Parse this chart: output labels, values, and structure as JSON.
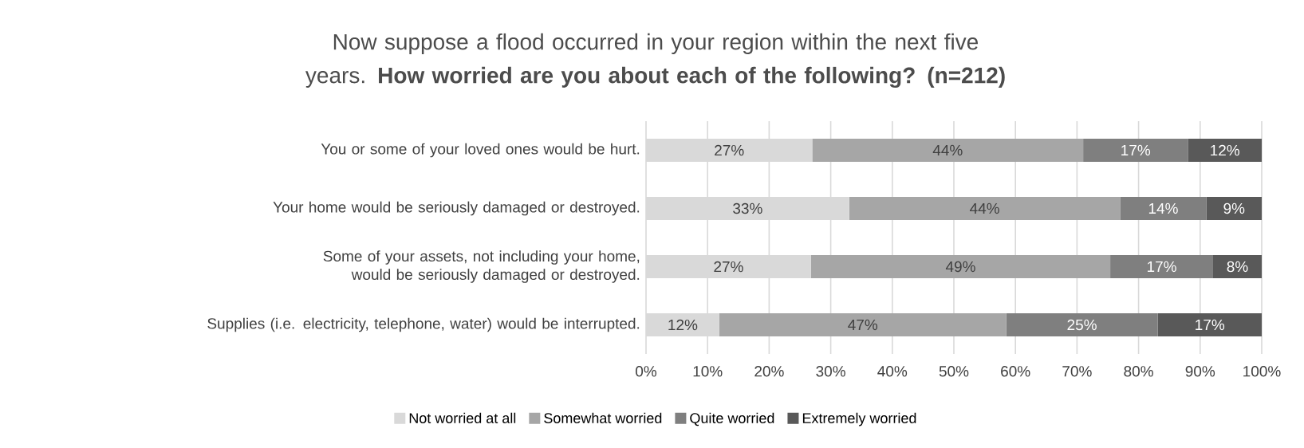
{
  "chart_data": {
    "type": "bar",
    "orientation": "horizontal",
    "stacked": true,
    "title": "Now suppose a flood occurred in your region within the next five years. **How worried are you about each of the following? (n=212)**",
    "categories": [
      "You or some of your loved ones would be hurt.",
      "Your home would be seriously damaged or destroyed.",
      "Some of your assets, not including your home, would be seriously damaged or destroyed.",
      "Supplies (i.e. electricity, telephone, water) would be interrupted."
    ],
    "series": [
      {
        "name": "Not worried at all",
        "color": "#d9d9d9",
        "values": [
          27,
          33,
          26.8,
          11.9
        ],
        "value_labels": [
          "27%",
          "33%",
          "27%",
          "12%"
        ]
      },
      {
        "name": "Somewhat worried",
        "color": "#a6a6a6",
        "values": [
          44,
          44,
          48.6,
          46.6
        ],
        "value_labels": [
          "44%",
          "44%",
          "49%",
          "47%"
        ]
      },
      {
        "name": "Quite worried",
        "color": "#7f7f7f",
        "values": [
          17,
          14,
          16.7,
          24.6
        ],
        "value_labels": [
          "17%",
          "14%",
          "17%",
          "25%"
        ]
      },
      {
        "name": "Extremely worried",
        "color": "#595959",
        "values": [
          12,
          9,
          7.9,
          16.9
        ],
        "value_labels": [
          "12%",
          "9%",
          "8%",
          "17%"
        ]
      }
    ],
    "xlim": [
      0,
      100
    ],
    "xticks": [
      {
        "value": 0,
        "label": "0%"
      },
      {
        "value": 10,
        "label": "10%"
      },
      {
        "value": 20,
        "label": "20%"
      },
      {
        "value": 30,
        "label": "30%"
      },
      {
        "value": 40,
        "label": "40%"
      },
      {
        "value": 50,
        "label": "50%"
      },
      {
        "value": 60,
        "label": "60%"
      },
      {
        "value": 70,
        "label": "70%"
      },
      {
        "value": 80,
        "label": "80%"
      },
      {
        "value": 90,
        "label": "90%"
      },
      {
        "value": 100,
        "label": "100%"
      }
    ],
    "grid": "x",
    "legend": "bottom"
  }
}
